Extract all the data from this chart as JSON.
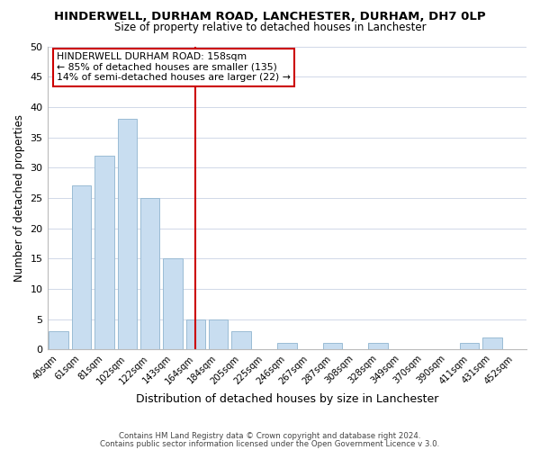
{
  "title": "HINDERWELL, DURHAM ROAD, LANCHESTER, DURHAM, DH7 0LP",
  "subtitle": "Size of property relative to detached houses in Lanchester",
  "xlabel": "Distribution of detached houses by size in Lanchester",
  "ylabel": "Number of detached properties",
  "bar_color": "#c8ddf0",
  "bar_edge_color": "#9abcd4",
  "categories": [
    "40sqm",
    "61sqm",
    "81sqm",
    "102sqm",
    "122sqm",
    "143sqm",
    "164sqm",
    "184sqm",
    "205sqm",
    "225sqm",
    "246sqm",
    "267sqm",
    "287sqm",
    "308sqm",
    "328sqm",
    "349sqm",
    "370sqm",
    "390sqm",
    "411sqm",
    "431sqm",
    "452sqm"
  ],
  "values": [
    3,
    27,
    32,
    38,
    25,
    15,
    5,
    5,
    3,
    0,
    1,
    0,
    1,
    0,
    1,
    0,
    0,
    0,
    1,
    2,
    0
  ],
  "ylim": [
    0,
    50
  ],
  "yticks": [
    0,
    5,
    10,
    15,
    20,
    25,
    30,
    35,
    40,
    45,
    50
  ],
  "vline_x_index": 6,
  "vline_color": "#cc0000",
  "annotation_title": "HINDERWELL DURHAM ROAD: 158sqm",
  "annotation_line1": "← 85% of detached houses are smaller (135)",
  "annotation_line2": "14% of semi-detached houses are larger (22) →",
  "footer1": "Contains HM Land Registry data © Crown copyright and database right 2024.",
  "footer2": "Contains public sector information licensed under the Open Government Licence v 3.0.",
  "background_color": "#ffffff",
  "grid_color": "#d0d8e8"
}
